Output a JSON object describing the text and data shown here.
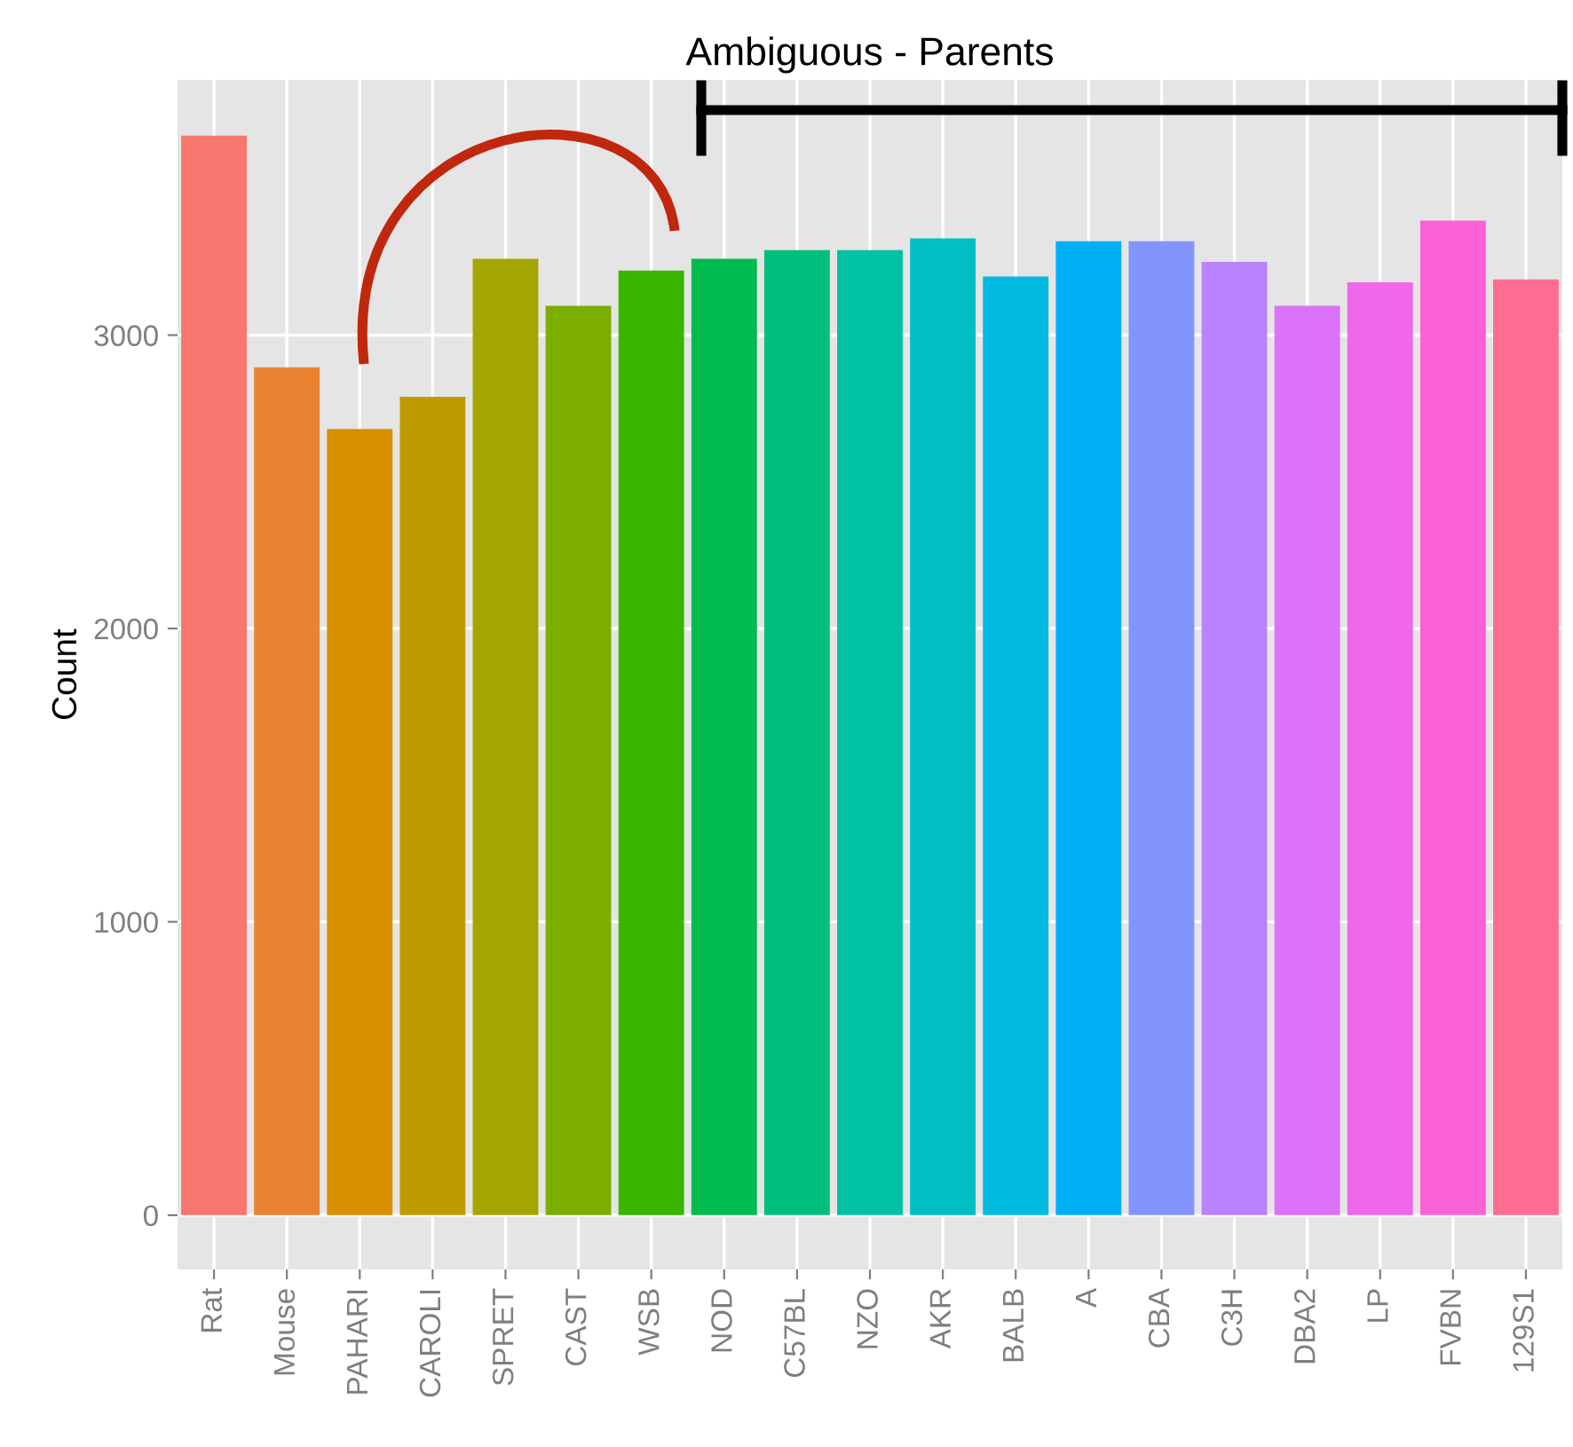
{
  "chart_data": {
    "type": "bar",
    "title": "Ambiguous - Parents",
    "ylabel": "Count",
    "categories": [
      "Rat",
      "Mouse",
      "PAHARI",
      "CAROLI",
      "SPRET",
      "CAST",
      "WSB",
      "NOD",
      "C57BL",
      "NZO",
      "AKR",
      "BALB",
      "A",
      "CBA",
      "C3H",
      "DBA2",
      "LP",
      "FVBN",
      "129S1"
    ],
    "values": [
      3680,
      2890,
      2680,
      2790,
      3260,
      3100,
      3220,
      3260,
      3290,
      3290,
      3330,
      3200,
      3320,
      3320,
      3250,
      3100,
      3180,
      3390,
      3190
    ],
    "colors": [
      "#f8766d",
      "#ea8331",
      "#d89000",
      "#c09b00",
      "#a3a500",
      "#7cae00",
      "#39b600",
      "#00bb4e",
      "#00bf7d",
      "#00c1a3",
      "#00bfc4",
      "#00bae0",
      "#00b0f6",
      "#8494ff",
      "#b983ff",
      "#dc71fa",
      "#ef67eb",
      "#fb61d7",
      "#ff6c91"
    ],
    "ylim": [
      -185,
      3870
    ],
    "yticks": [
      0,
      1000,
      2000,
      3000
    ],
    "grid": true,
    "legend": false
  }
}
